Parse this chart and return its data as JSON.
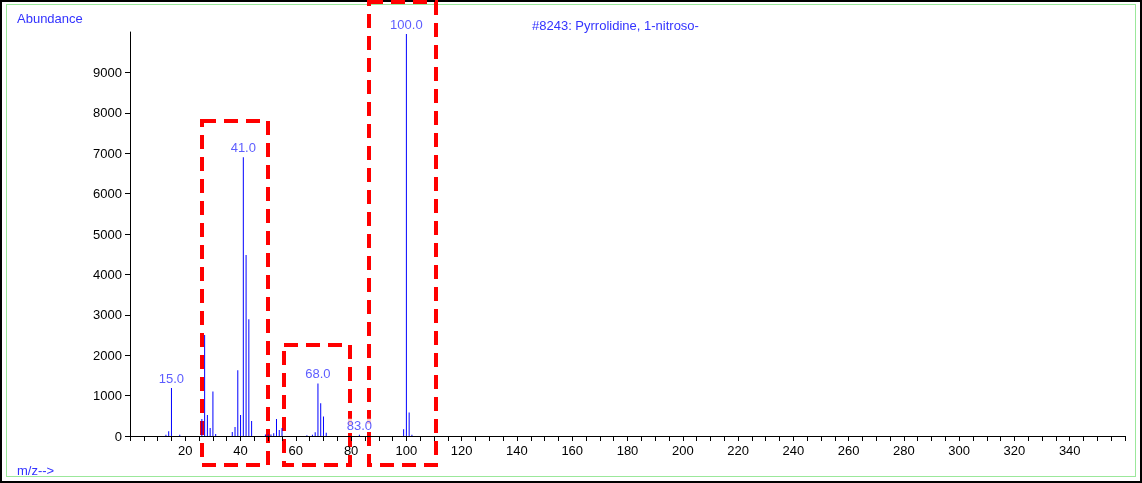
{
  "chart_data": {
    "type": "bar",
    "title": "#8243: Pyrrolidine, 1-nitroso-",
    "xlabel": "m/z-->",
    "ylabel": "Abundance",
    "x": [
      13,
      14,
      15,
      18,
      26,
      27,
      28,
      29,
      30,
      31,
      37,
      38,
      39,
      40,
      41,
      42,
      43,
      44,
      49,
      50,
      51,
      52,
      53,
      54,
      55,
      64,
      66,
      67,
      68,
      69,
      70,
      71,
      83,
      99,
      100,
      101,
      102
    ],
    "values": [
      30,
      120,
      1190,
      30,
      420,
      2500,
      520,
      200,
      1100,
      50,
      100,
      220,
      1630,
      520,
      6900,
      4480,
      2890,
      370,
      40,
      40,
      40,
      70,
      420,
      150,
      200,
      20,
      30,
      90,
      1300,
      810,
      480,
      80,
      30,
      170,
      9950,
      580,
      30
    ],
    "annotations": [
      {
        "text": "15.0",
        "x": 15,
        "y": 1190
      },
      {
        "text": "41.0",
        "x": 41,
        "y": 6900
      },
      {
        "text": "68.0",
        "x": 68,
        "y": 1300
      },
      {
        "text": "83.0",
        "x": 83,
        "y": 30
      },
      {
        "text": "100.0",
        "x": 100,
        "y": 9950
      }
    ],
    "color": "#0000ff",
    "xlim": [
      0,
      360
    ],
    "xticks": [
      20,
      40,
      60,
      80,
      100,
      120,
      140,
      160,
      180,
      200,
      220,
      240,
      260,
      280,
      300,
      320,
      340
    ],
    "ylim": [
      0,
      10000
    ],
    "yticks": [
      0,
      1000,
      2000,
      3000,
      4000,
      5000,
      6000,
      7000,
      8000,
      9000
    ],
    "grid": false
  }
}
